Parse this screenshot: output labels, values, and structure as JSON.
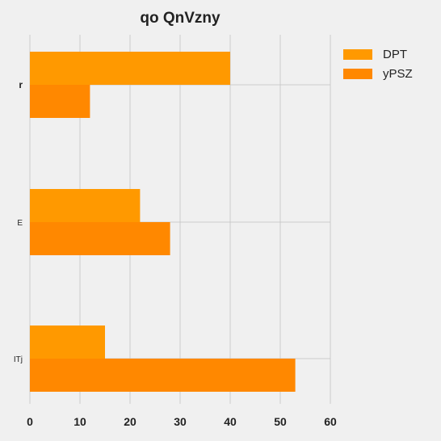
{
  "chart_data": {
    "type": "bar",
    "orientation": "horizontal",
    "title": "qo QnVzny",
    "xlabel": "",
    "ylabel": "",
    "categories": [
      "r",
      "E",
      "ITj"
    ],
    "series": [
      {
        "name": "DPT",
        "values": [
          40,
          22,
          15
        ],
        "color": "#ff9900"
      },
      {
        "name": "yPSZ",
        "values": [
          12,
          28,
          53
        ],
        "color": "#ff8800"
      }
    ],
    "xlim": [
      0,
      60
    ],
    "xticks": [
      "0",
      "10",
      "20",
      "30",
      "40",
      "50",
      "60"
    ],
    "grid": true,
    "legend_position": "top-right"
  }
}
